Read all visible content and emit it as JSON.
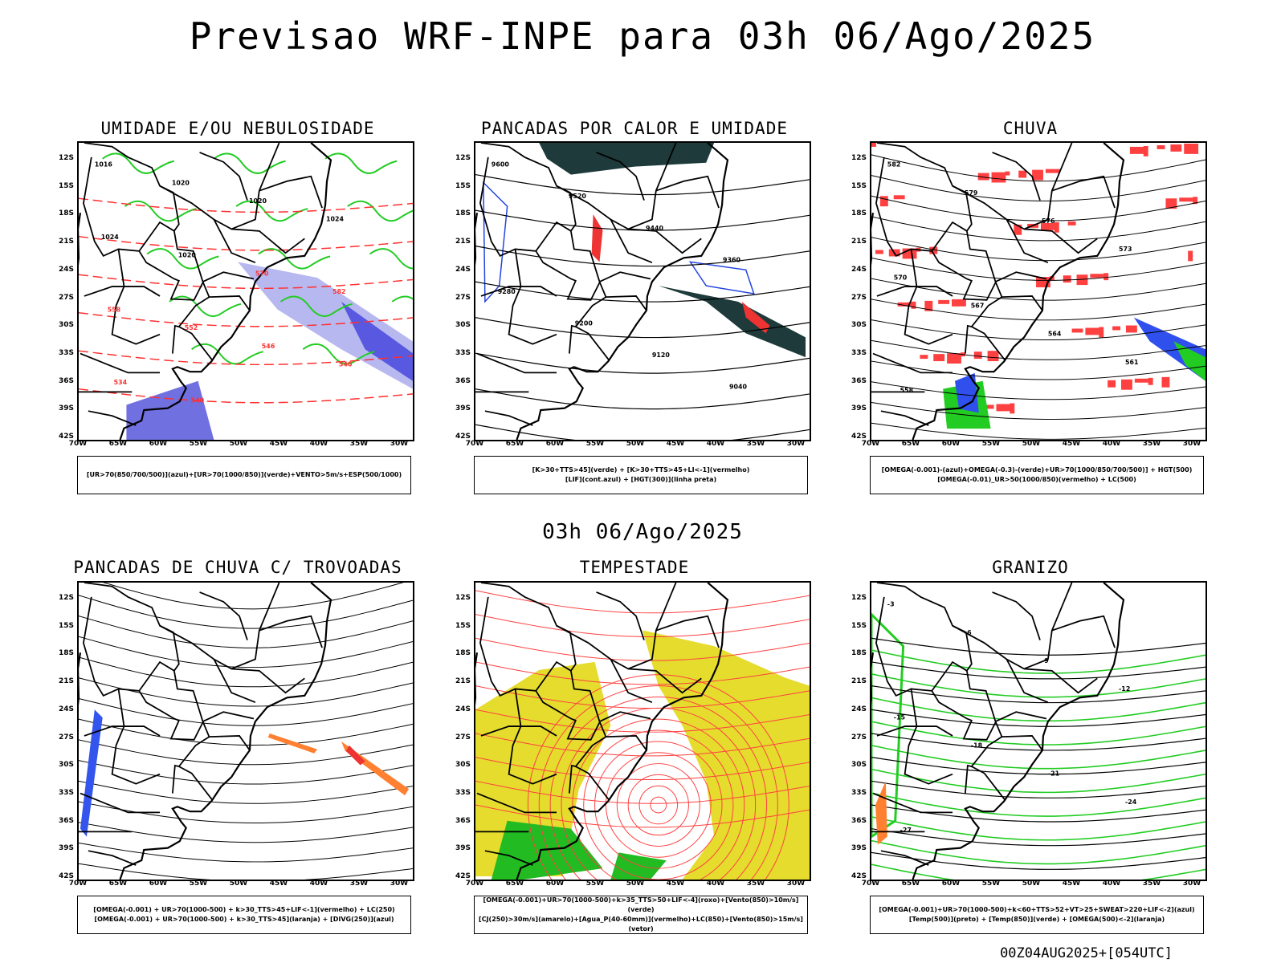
{
  "main_title": "Previsao WRF-INPE  para 03h 06/Ago/2025",
  "row_time": "03h 06/Ago/2025",
  "footer": "00Z04AUG2025+[054UTC]",
  "lat_labels": [
    "12S",
    "15S",
    "18S",
    "21S",
    "24S",
    "27S",
    "30S",
    "33S",
    "36S",
    "39S",
    "42S"
  ],
  "lon_labels": [
    "70W",
    "65W",
    "60W",
    "55W",
    "50W",
    "45W",
    "40W",
    "35W",
    "30W"
  ],
  "panels": [
    {
      "title": "UMIDADE E/OU NEBULOSIDADE",
      "legend": [
        "[UR>70(850/700/500)](azul)+[UR>70(1000/850)](verde)+VENTO>5m/s+ESP(500/1000)"
      ],
      "contour_labels": [
        "1016",
        "1020",
        "1020",
        "1024",
        "1024",
        "1020",
        "570",
        "582",
        "558",
        "552",
        "546",
        "540",
        "534",
        "540"
      ]
    },
    {
      "title": "PANCADAS POR CALOR E UMIDADE",
      "legend": [
        "[K>30+TTS>45](verde) + [K>30+TTS>45+LI<-1](vermelho)",
        "[LIF](cont.azul) + [HGT(300)](linha preta)"
      ],
      "contour_labels": [
        "9600",
        "9520",
        "9440",
        "9360",
        "9280",
        "9200",
        "9120",
        "9040"
      ]
    },
    {
      "title": "CHUVA",
      "legend": [
        "[OMEGA(-0.001)-(azul)+OMEGA(-0.3)-(verde)+UR>70(1000/850/700/500)] + HGT(500)",
        "[OMEGA(-0.01)_UR>50(1000/850)(vermelho) + LC(500)"
      ],
      "contour_labels": [
        "582",
        "579",
        "576",
        "573",
        "570",
        "567",
        "564",
        "561",
        "558"
      ]
    },
    {
      "title": "PANCADAS DE CHUVA C/ TROVOADAS",
      "legend": [
        "[OMEGA(-0.001) + UR>70(1000-500) + k>30_TTS>45+LIF<-1](vermelho) + LC(250)",
        "[OMEGA(-0.001) + UR>70(1000-500) + k>30_TTS>45](laranja) + [DIVG(250)](azul)"
      ],
      "contour_labels": []
    },
    {
      "title": "TEMPESTADE",
      "legend": [
        "[OMEGA(-0.001)+UR>70(1000-500)+k>35_TTS>50+LIF<-4](roxo)+[Vento(850)>10m/s](verde)",
        "[CJ(250)>30m/s](amarelo)+[Agua_P(40-60mm)](vermelho)+LC(850)+[Vento(850)>15m/s](vetor)"
      ],
      "contour_labels": []
    },
    {
      "title": "GRANIZO",
      "legend": [
        "[OMEGA(-0.001)+UR>70(1000-500)+k<60+TTS>52+VT>25+SWEAT>220+LIF<-2](azul)",
        "[Temp(500)](preto) + [Temp(850)](verde) + [OMEGA(500)<-2](laranja)"
      ],
      "contour_labels": [
        "-3",
        "-6",
        "-9",
        "-12",
        "-15",
        "-18",
        "-21",
        "-24",
        "-27"
      ]
    }
  ]
}
